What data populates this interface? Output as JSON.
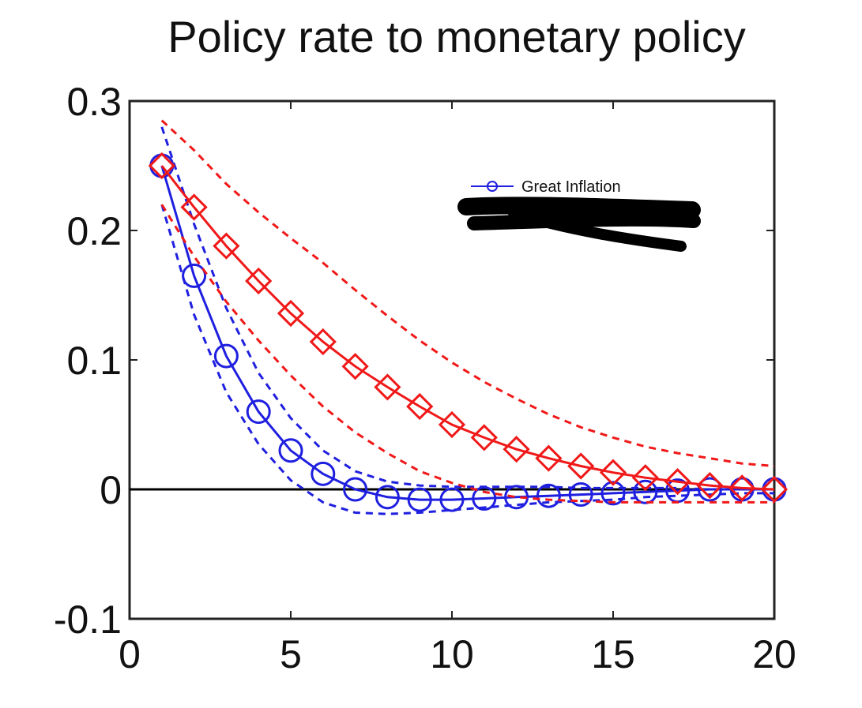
{
  "chart_data": {
    "type": "line",
    "title": "Policy rate to monetary policy",
    "xlabel": "",
    "ylabel": "",
    "xlim": [
      0,
      20
    ],
    "ylim": [
      -0.1,
      0.3
    ],
    "xticks": [
      0,
      5,
      10,
      15,
      20
    ],
    "yticks": [
      -0.1,
      0,
      0.1,
      0.2,
      0.3
    ],
    "xtick_labels": [
      "0",
      "5",
      "10",
      "15",
      "20"
    ],
    "ytick_labels": [
      "-0.1",
      "0",
      "0.1",
      "0.2",
      "0.3"
    ],
    "grid": false,
    "legend_position": "top-right",
    "x": [
      1,
      2,
      3,
      4,
      5,
      6,
      7,
      8,
      9,
      10,
      11,
      12,
      13,
      14,
      15,
      16,
      17,
      18,
      19,
      20
    ],
    "zero_line": true,
    "series": [
      {
        "name": "Great Inflation",
        "color": "#1f1fe0",
        "marker": "circle",
        "values": [
          0.25,
          0.165,
          0.103,
          0.06,
          0.03,
          0.012,
          0.0,
          -0.006,
          -0.008,
          -0.008,
          -0.007,
          -0.006,
          -0.005,
          -0.004,
          -0.003,
          -0.002,
          -0.001,
          0.0,
          0.0,
          0.0
        ],
        "band_upper": [
          0.28,
          0.205,
          0.14,
          0.09,
          0.055,
          0.03,
          0.014,
          0.006,
          0.003,
          0.002,
          0.002,
          0.002,
          0.002,
          0.001,
          0.001,
          0.001,
          0.001,
          0.0,
          0.0,
          0.0
        ],
        "band_lower": [
          0.22,
          0.135,
          0.075,
          0.035,
          0.007,
          -0.01,
          -0.018,
          -0.019,
          -0.018,
          -0.016,
          -0.014,
          -0.012,
          -0.01,
          -0.009,
          -0.008,
          -0.006,
          -0.005,
          -0.004,
          -0.003,
          -0.003
        ]
      },
      {
        "name": "",
        "color": "#f01818",
        "marker": "diamond",
        "values": [
          0.25,
          0.218,
          0.188,
          0.161,
          0.136,
          0.114,
          0.095,
          0.079,
          0.064,
          0.05,
          0.04,
          0.031,
          0.024,
          0.018,
          0.013,
          0.009,
          0.006,
          0.003,
          0.001,
          0.0
        ],
        "band_upper": [
          0.285,
          0.262,
          0.236,
          0.214,
          0.194,
          0.175,
          0.154,
          0.134,
          0.115,
          0.098,
          0.083,
          0.07,
          0.058,
          0.048,
          0.04,
          0.033,
          0.028,
          0.024,
          0.02,
          0.018
        ],
        "band_lower": [
          0.22,
          0.18,
          0.145,
          0.115,
          0.088,
          0.064,
          0.044,
          0.028,
          0.014,
          0.005,
          -0.002,
          -0.006,
          -0.008,
          -0.009,
          -0.01,
          -0.01,
          -0.01,
          -0.01,
          -0.01,
          -0.01
        ]
      }
    ]
  }
}
